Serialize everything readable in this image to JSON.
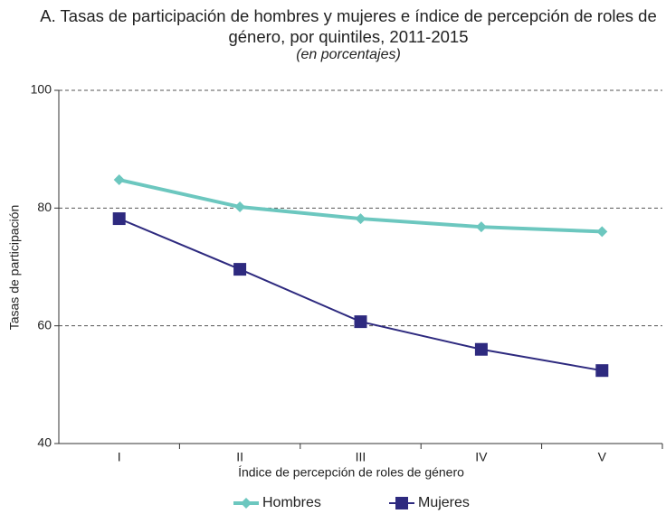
{
  "chart_data": {
    "type": "line",
    "title": "A. Tasas de participación de hombres y mujeres e índice de percepción de roles de género, por quintiles, 2011-2015",
    "subtitle": "(en porcentajes)",
    "x_label": "Índice de percepción de roles de género",
    "y_label": "Tasas de participación",
    "categories": [
      "I",
      "II",
      "III",
      "IV",
      "V"
    ],
    "series": [
      {
        "name": "Hombres",
        "color": "#6cc7bf",
        "marker": "diamond",
        "values": [
          84.8,
          80.2,
          78.2,
          76.8,
          76.0
        ]
      },
      {
        "name": "Mujeres",
        "color": "#2e2a7f",
        "marker": "square",
        "values": [
          78.2,
          69.6,
          60.7,
          56.0,
          52.4
        ]
      }
    ],
    "ylim": [
      40,
      100
    ],
    "yticks": [
      40,
      60,
      80,
      100
    ],
    "grid": true
  }
}
